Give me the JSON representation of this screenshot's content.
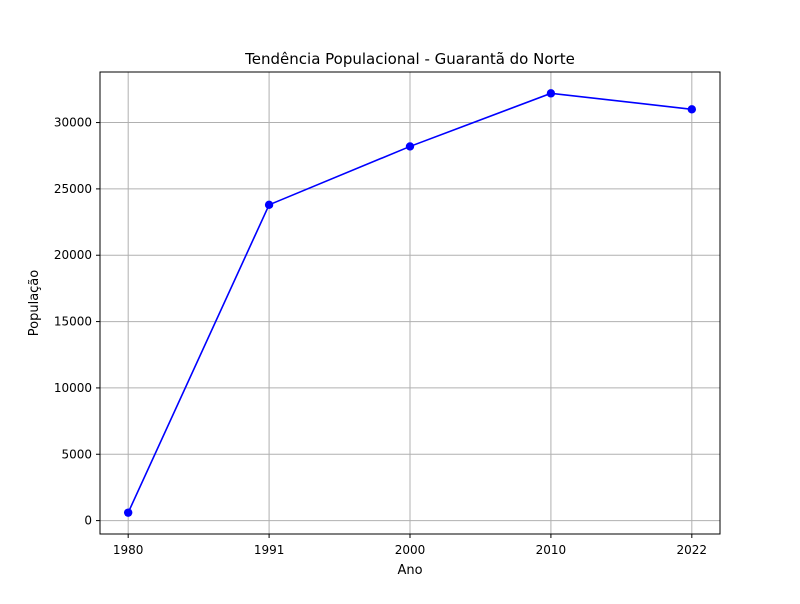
{
  "chart_data": {
    "type": "line",
    "title": "Tendência Populacional - Guarantã do Norte",
    "xlabel": "Ano",
    "ylabel": "População",
    "categories": [
      "1980",
      "1991",
      "2000",
      "2010",
      "2022"
    ],
    "series": [
      {
        "values": [
          600,
          23800,
          28200,
          32200,
          31000
        ],
        "color": "#0000ff",
        "marker": "circle"
      }
    ],
    "yticks": [
      0,
      5000,
      10000,
      15000,
      20000,
      25000,
      30000
    ],
    "ylim": [
      -1010,
      33810
    ],
    "grid": true
  },
  "colors": {
    "line": "#0000ff",
    "grid": "#b0b0b0",
    "axis": "#000000"
  }
}
